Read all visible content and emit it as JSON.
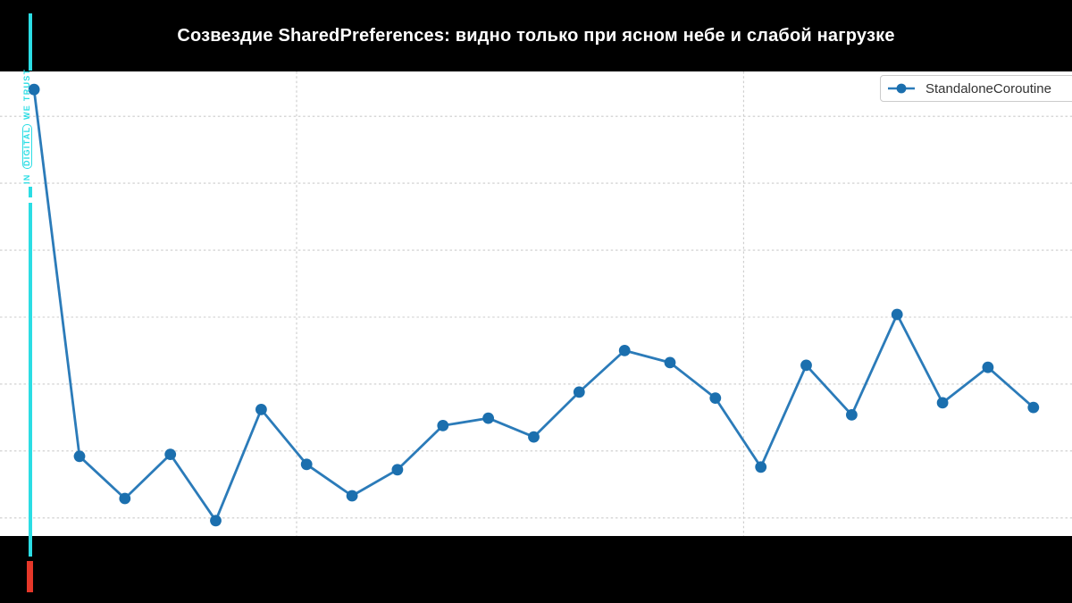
{
  "header": {
    "title": "Созвездие SharedPreferences: видно только при ясном небе и слабой нагрузке"
  },
  "legend": {
    "label": "StandaloneCoroutine"
  },
  "watermark": {
    "prefix": "IN",
    "bracketed": "DIGITAL",
    "suffix": "WE TRUST"
  },
  "colors": {
    "header_bg": "#000000",
    "plot_bg": "#ffffff",
    "title_text": "#ffffff",
    "line": "#2b7bb9",
    "marker": "#1b6fae",
    "grid": "#cccccc",
    "legend_text": "#333333",
    "legend_border": "#cbcbcb",
    "accent_cyan": "#2bdde4",
    "accent_red": "#e53729"
  },
  "chart_data": {
    "type": "line",
    "title": "Созвездие SharedPreferences: видно только при ясном небе и слабой нагрузке",
    "xlabel": "",
    "ylabel": "",
    "axis_tick_labels_visible": false,
    "note": "No tick labels shown in frame; y values expressed in gridline units (horizontal dashed gridlines = integers 0..6), x = sample index",
    "grid": "dashed",
    "legend_position": "upper right",
    "xlim": [
      -0.75,
      22.85
    ],
    "ylim": [
      -0.27,
      6.67
    ],
    "ygrid_values": [
      0,
      1,
      2,
      3,
      4,
      5,
      6
    ],
    "xgrid_values": [
      5.78,
      15.62
    ],
    "series": [
      {
        "name": "StandaloneCoroutine",
        "x": [
          0,
          1,
          2,
          3,
          4,
          5,
          6,
          7,
          8,
          9,
          10,
          11,
          12,
          13,
          14,
          15,
          16,
          17,
          18,
          19,
          20,
          21,
          22
        ],
        "values": [
          6.4,
          0.92,
          0.29,
          0.95,
          -0.04,
          1.62,
          0.8,
          0.33,
          0.72,
          1.38,
          1.49,
          1.21,
          1.88,
          2.5,
          2.32,
          1.79,
          0.76,
          2.28,
          1.54,
          3.04,
          1.72,
          2.25,
          1.65
        ]
      }
    ]
  }
}
